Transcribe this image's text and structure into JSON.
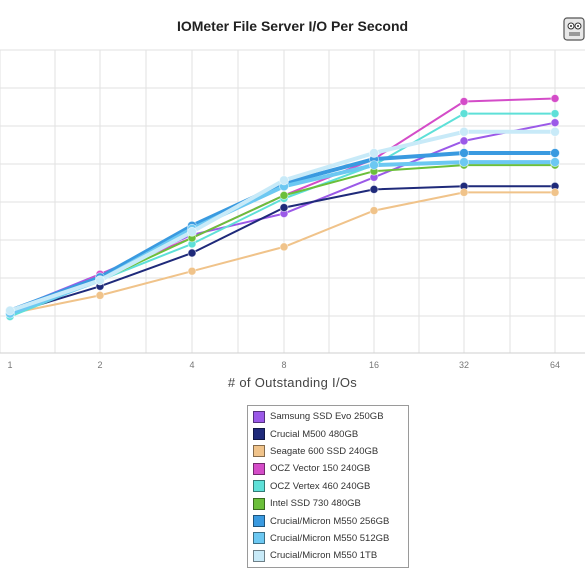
{
  "chart_data": {
    "type": "line",
    "title": "IOMeter File Server I/O Per Second",
    "xlabel": "# of Outstanding I/Os",
    "ylabel": "",
    "x": [
      1,
      2,
      4,
      8,
      16,
      32,
      64
    ],
    "x_scale": "log2",
    "ylim": [
      0,
      100
    ],
    "grid": true,
    "legend_position": "bottom-center",
    "series": [
      {
        "name": "Samsung SSD Evo 250GB",
        "color": "#9b59e8",
        "values": [
          14,
          26,
          39,
          46,
          58,
          70,
          76
        ]
      },
      {
        "name": "Crucial M500 480GB",
        "color": "#1f2a7a",
        "values": [
          13,
          22,
          33,
          48,
          54,
          55,
          55
        ]
      },
      {
        "name": "Seagate 600 SSD 240GB",
        "color": "#f0c38a",
        "values": [
          13,
          19,
          27,
          35,
          47,
          53,
          53
        ]
      },
      {
        "name": "OCZ Vector 150 240GB",
        "color": "#d44cc8",
        "values": [
          12,
          26,
          38,
          52,
          64,
          83,
          84
        ]
      },
      {
        "name": "OCZ Vertex 460 240GB",
        "color": "#5ee0d8",
        "values": [
          12,
          24,
          36,
          51,
          62,
          79,
          79
        ]
      },
      {
        "name": "Intel SSD 730 480GB",
        "color": "#6bbf3a",
        "values": [
          13,
          24,
          38,
          52,
          60,
          62,
          62
        ]
      },
      {
        "name": "Crucial/Micron M550 256GB",
        "color": "#3a9ae0",
        "values": [
          14,
          25,
          42,
          56,
          64,
          66,
          66
        ]
      },
      {
        "name": "Crucial/Micron M550 512GB",
        "color": "#6cc8f2",
        "values": [
          13,
          24,
          41,
          55,
          62,
          63,
          63
        ]
      },
      {
        "name": "Crucial/Micron M550 1TB",
        "color": "#c8eaf8",
        "values": [
          14,
          24,
          40,
          57,
          66,
          73,
          73
        ]
      }
    ]
  },
  "logo": {
    "icon": "mascot-logo-icon"
  }
}
